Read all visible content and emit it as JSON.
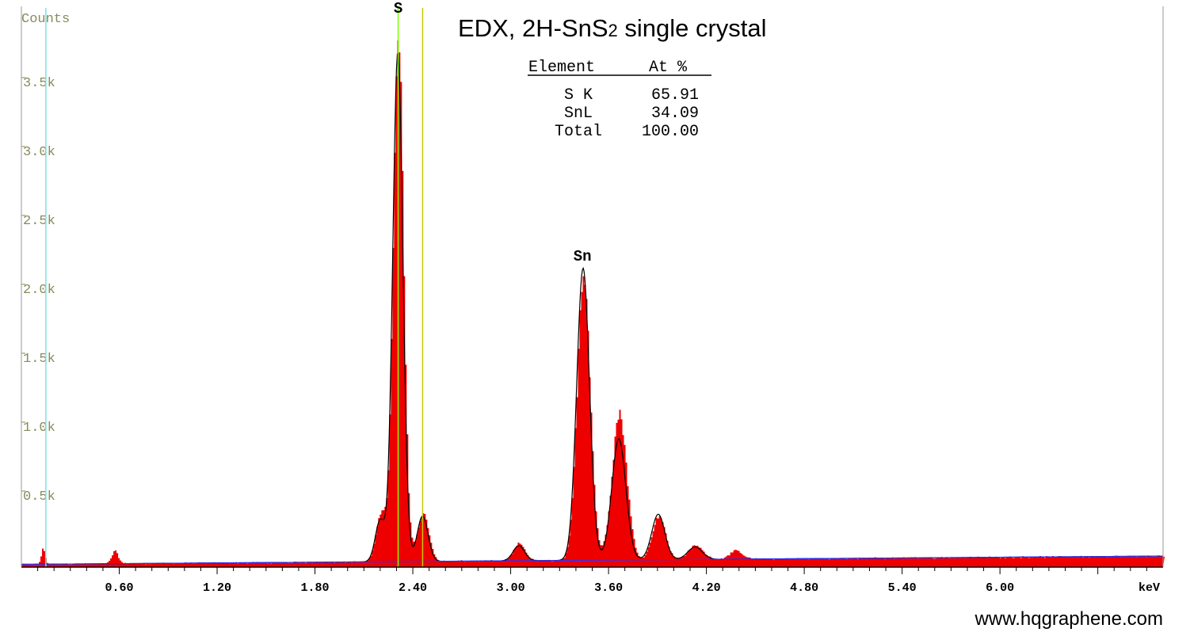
{
  "chart_data": {
    "type": "area",
    "title": "EDX, 2H-SnS2 single crystal",
    "title_main": "EDX, 2H-SnS",
    "title_sub": "2",
    "title_tail": " single crystal",
    "ylabel": "Counts",
    "xlabel": "keV",
    "xlim": [
      0.0,
      7.0
    ],
    "ylim": [
      0,
      4000
    ],
    "x_ticks": [
      {
        "value": 0.6,
        "label": "0.60"
      },
      {
        "value": 1.2,
        "label": "1.20"
      },
      {
        "value": 1.8,
        "label": "1.80"
      },
      {
        "value": 2.4,
        "label": "2.40"
      },
      {
        "value": 3.0,
        "label": "3.00"
      },
      {
        "value": 3.6,
        "label": "3.60"
      },
      {
        "value": 4.2,
        "label": "4.20"
      },
      {
        "value": 4.8,
        "label": "4.80"
      },
      {
        "value": 5.4,
        "label": "5.40"
      },
      {
        "value": 6.0,
        "label": "6.00"
      }
    ],
    "y_ticks": [
      {
        "value": 500,
        "label": "0.5k"
      },
      {
        "value": 1000,
        "label": "1.0k"
      },
      {
        "value": 1500,
        "label": "1.5k"
      },
      {
        "value": 2000,
        "label": "2.0k"
      },
      {
        "value": 2500,
        "label": "2.5k"
      },
      {
        "value": 3000,
        "label": "3.0k"
      },
      {
        "value": 3500,
        "label": "3.5k"
      }
    ],
    "peak_labels": [
      {
        "label": "S",
        "x": 2.31,
        "y": 4000
      },
      {
        "label": "Sn",
        "x": 3.44,
        "y": 2200
      }
    ],
    "marker_lines": [
      {
        "x": 0.15,
        "color": "#7fe0e0"
      },
      {
        "x": 2.31,
        "color": "#7fff00"
      },
      {
        "x": 2.46,
        "color": "#c8c800"
      }
    ],
    "background": {
      "y0": 20,
      "y1": 80
    },
    "peaks": [
      {
        "center": 0.13,
        "height": 110,
        "width": 0.012
      },
      {
        "center": 0.57,
        "height": 90,
        "width": 0.02
      },
      {
        "center": 2.2,
        "height": 350,
        "width": 0.03
      },
      {
        "center": 2.308,
        "height": 3780,
        "width": 0.032
      },
      {
        "center": 2.46,
        "height": 350,
        "width": 0.035
      },
      {
        "center": 3.05,
        "height": 125,
        "width": 0.035
      },
      {
        "center": 3.444,
        "height": 2100,
        "width": 0.04
      },
      {
        "center": 3.663,
        "height": 1060,
        "width": 0.045
      },
      {
        "center": 3.905,
        "height": 320,
        "width": 0.04
      },
      {
        "center": 4.131,
        "height": 100,
        "width": 0.045
      },
      {
        "center": 4.377,
        "height": 60,
        "width": 0.04
      }
    ],
    "fit_peaks": [
      {
        "center": 2.2,
        "height": 300,
        "width": 0.03
      },
      {
        "center": 2.308,
        "height": 3700,
        "width": 0.031
      },
      {
        "center": 2.46,
        "height": 330,
        "width": 0.033
      },
      {
        "center": 3.05,
        "height": 110,
        "width": 0.035
      },
      {
        "center": 3.444,
        "height": 2120,
        "width": 0.039
      },
      {
        "center": 3.663,
        "height": 880,
        "width": 0.043
      },
      {
        "center": 3.905,
        "height": 330,
        "width": 0.04
      },
      {
        "center": 4.131,
        "height": 90,
        "width": 0.045
      }
    ],
    "colors": {
      "spectrum_fill": "#ee0000",
      "fit_line": "#000000",
      "background_line": "#3030ff",
      "axis": "#000000"
    },
    "table": {
      "headers": [
        "Element",
        "At %"
      ],
      "rows": [
        [
          "S K",
          "65.91"
        ],
        [
          "SnL",
          "34.09"
        ],
        [
          "Total",
          "100.00"
        ]
      ]
    }
  },
  "footer": {
    "url": "www.hqgraphene.com"
  }
}
